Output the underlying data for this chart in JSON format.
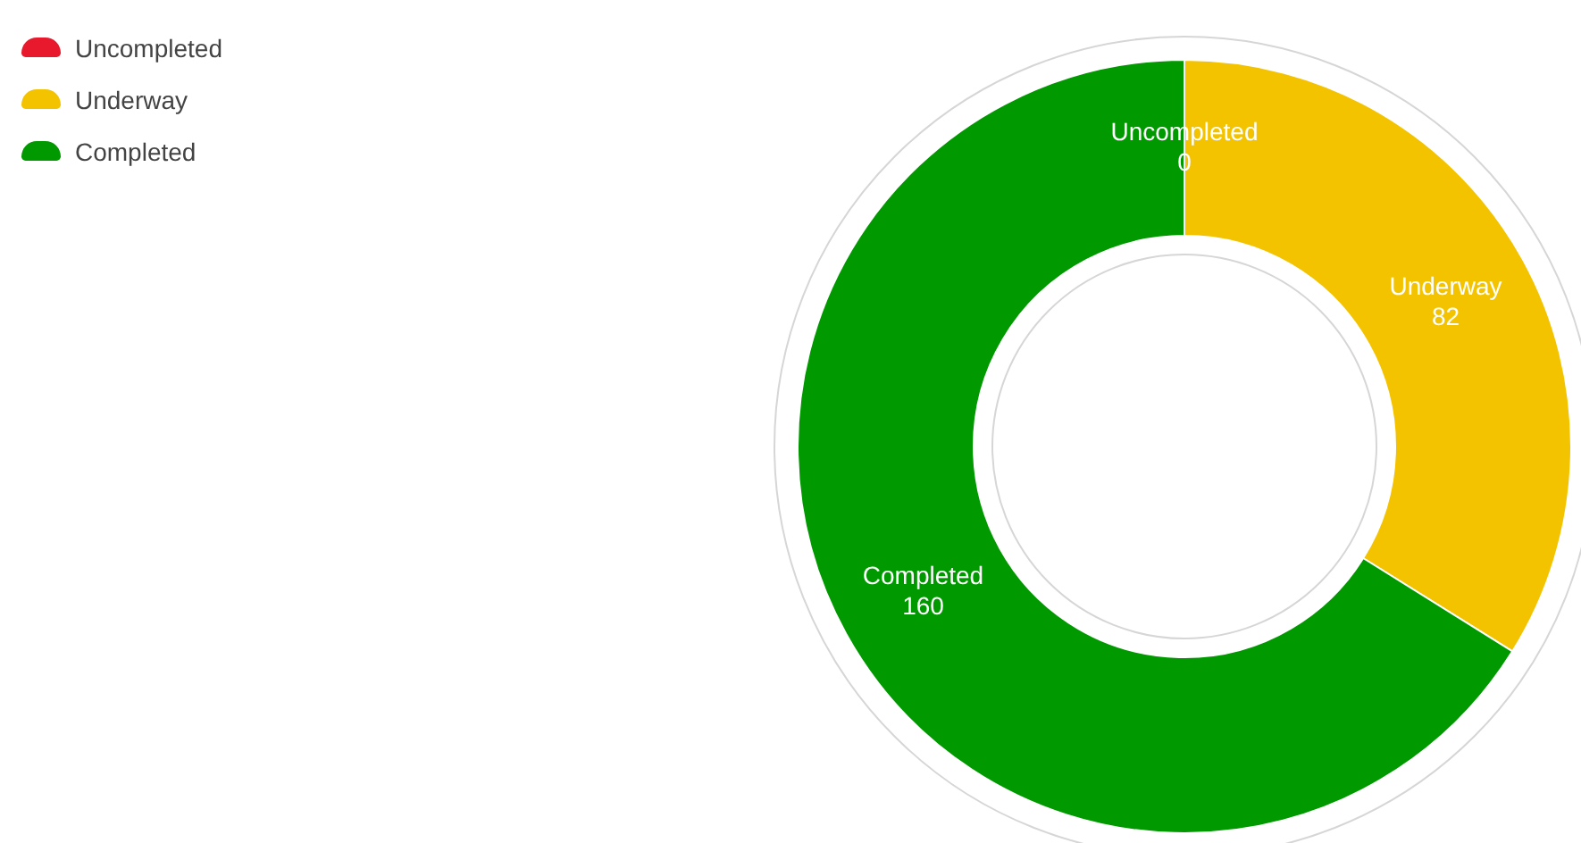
{
  "chart_data": {
    "type": "donut",
    "categories": [
      "Uncompleted",
      "Underway",
      "Completed"
    ],
    "values": [
      0,
      82,
      160
    ],
    "colors": [
      "#e8192c",
      "#f4c300",
      "#009900"
    ],
    "value_labels": [
      "0",
      "82",
      "160"
    ],
    "legend": "top left"
  }
}
